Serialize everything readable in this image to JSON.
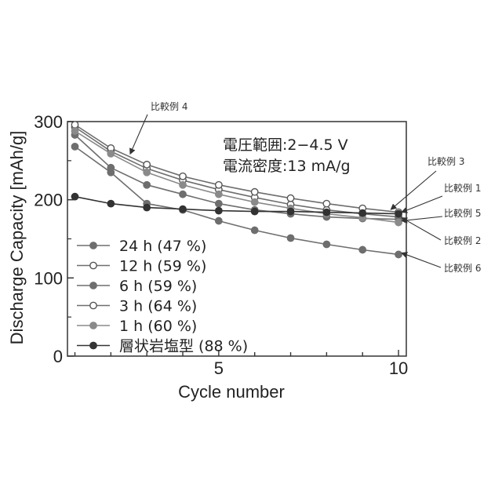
{
  "chart_data": {
    "type": "line",
    "xlabel": "Cycle number",
    "ylabel": "Discharge Capacity [mAh/g]",
    "xlim": [
      1,
      10
    ],
    "ylim": [
      0,
      300
    ],
    "xticks": [
      5,
      10
    ],
    "yticks": [
      0,
      100,
      200,
      300
    ],
    "grid": false,
    "legend_position": "bottom-left",
    "x": [
      1,
      2,
      3,
      4,
      5,
      6,
      7,
      8,
      9,
      10
    ],
    "series": [
      {
        "name": "24 h (47 %)",
        "marker": "filled",
        "color": "#6e6e6e",
        "values": [
          268,
          235,
          195,
          187,
          173,
          161,
          151,
          143,
          136,
          130
        ]
      },
      {
        "name": "12 h (59 %)",
        "marker": "open",
        "color": "#6e6e6e",
        "values": [
          293,
          262,
          240,
          225,
          213,
          203,
          194,
          187,
          182,
          178
        ]
      },
      {
        "name": "6 h  (59 %)",
        "marker": "filled",
        "color": "#6e6e6e",
        "values": [
          283,
          241,
          219,
          207,
          195,
          187,
          182,
          178,
          176,
          175
        ]
      },
      {
        "name": "3 h  (64 %)",
        "marker": "open",
        "color": "#6e6e6e",
        "values": [
          296,
          266,
          245,
          230,
          219,
          210,
          202,
          195,
          189,
          184
        ]
      },
      {
        "name": "1 h  (60 %)",
        "marker": "filled",
        "color": "#8a8a8a",
        "values": [
          288,
          259,
          235,
          219,
          207,
          197,
          189,
          182,
          177,
          171
        ]
      },
      {
        "name": "層状岩塩型 (88 %)",
        "marker": "filled",
        "color": "#333333",
        "values": [
          204,
          195,
          190,
          188,
          186,
          185,
          185,
          184,
          183,
          182
        ]
      }
    ],
    "conditions": [
      "電圧範囲:2−4.5 V",
      "電流密度:13 mA/g"
    ],
    "annotations": [
      {
        "text": "比較例 4",
        "series_index": 3
      },
      {
        "text": "比較例 3",
        "series_index": 3
      },
      {
        "text": "比較例 1",
        "series_index": 5
      },
      {
        "text": "比較例 5",
        "series_index": 4
      },
      {
        "text": "比較例 2",
        "series_index": 2
      },
      {
        "text": "比較例 6",
        "series_index": 0
      }
    ]
  }
}
